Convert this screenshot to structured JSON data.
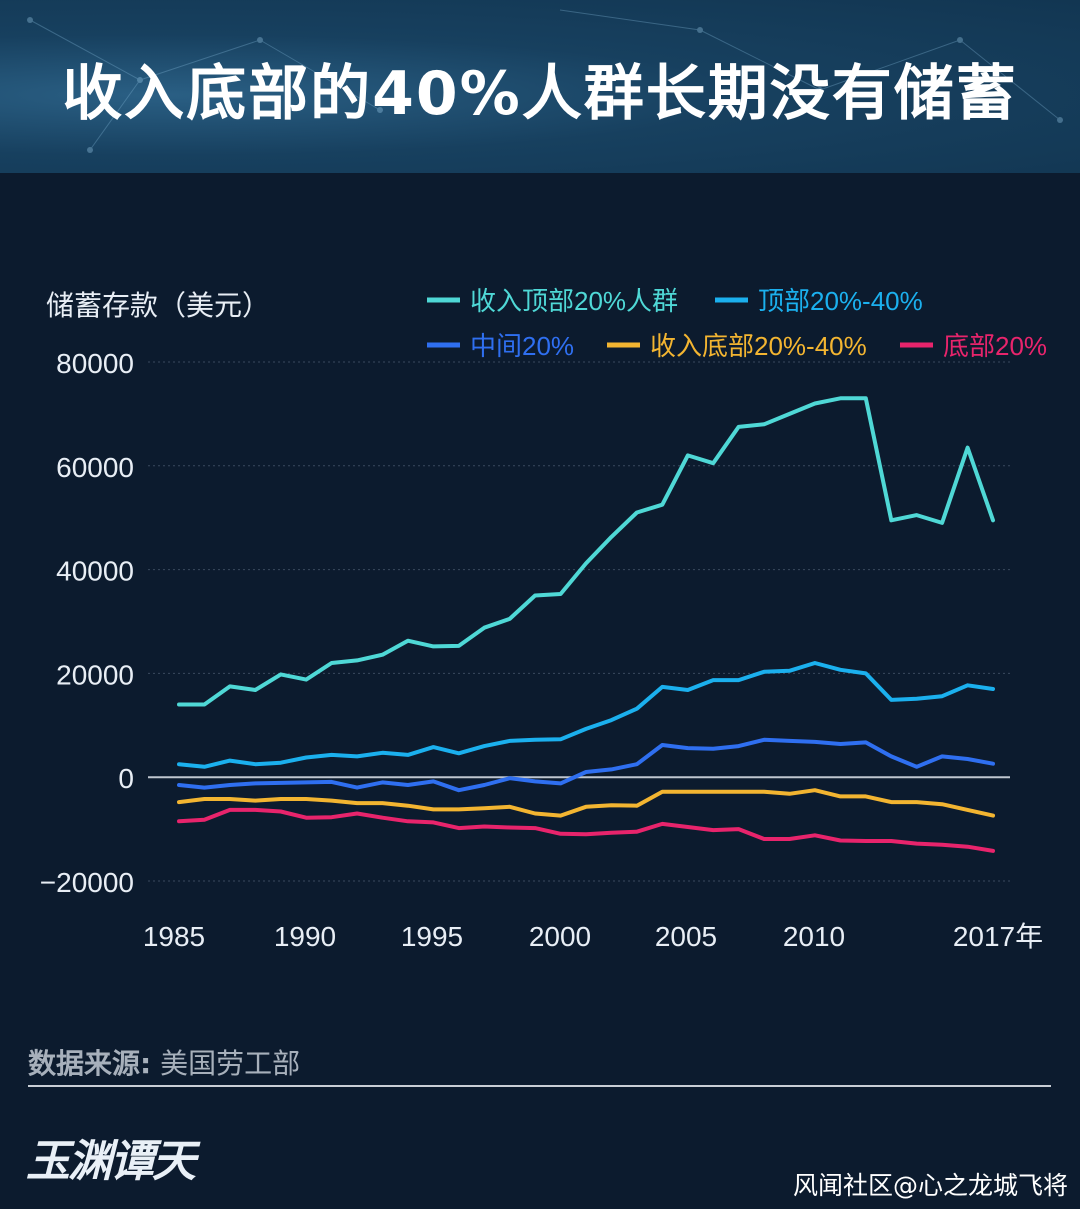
{
  "header": {
    "title": "收入底部的40%人群长期没有储蓄"
  },
  "footer": {
    "source_label": "数据来源:",
    "source_value": "美国劳工部",
    "brand": "玉渊谭天",
    "credit": "风闻社区@心之龙城飞将"
  },
  "colors": {
    "background": "#0c1b2e",
    "axis_zero": "#bfc6cf",
    "grid": "#3a4a5e",
    "text": "#e8eef5"
  },
  "chart_data": {
    "type": "line",
    "title": "收入底部的40%人群长期没有储蓄",
    "ylabel": "储蓄存款（美元）",
    "xlabel": "",
    "ylim": [
      -20000,
      80000
    ],
    "xlim": [
      1985,
      2017
    ],
    "yticks": [
      80000,
      60000,
      40000,
      20000,
      0,
      -20000
    ],
    "ytick_labels": [
      "80000",
      "60000",
      "40000",
      "20000",
      "0",
      "−20000"
    ],
    "xticks": [
      1985,
      1990,
      1995,
      2000,
      2005,
      2010,
      2017
    ],
    "xtick_labels": [
      "1985",
      "1990",
      "1995",
      "2000",
      "2005",
      "2010",
      "2017年"
    ],
    "x": [
      1986,
      1987,
      1988,
      1989,
      1990,
      1991,
      1992,
      1993,
      1994,
      1995,
      1996,
      1997,
      1998,
      1999,
      2000,
      2001,
      2002,
      2003,
      2004,
      2005,
      2006,
      2007,
      2008,
      2009,
      2010,
      2011,
      2012,
      2013,
      2014,
      2015,
      2016,
      2017,
      2018
    ],
    "series": [
      {
        "name": "收入顶部20%人群",
        "color": "#4fd8d6",
        "values": [
          14000,
          14000,
          17500,
          16800,
          19800,
          18800,
          22000,
          22500,
          23600,
          26300,
          25200,
          25300,
          28800,
          30500,
          35000,
          35300,
          41200,
          46300,
          51000,
          52500,
          62000,
          60500,
          67500,
          68000,
          70000,
          72000,
          73000,
          73000,
          49500,
          50500,
          49000,
          63500,
          49500
        ]
      },
      {
        "name": "顶部20%-40%",
        "color": "#1bb0ee",
        "values": [
          2500,
          2000,
          3200,
          2500,
          2800,
          3800,
          4300,
          4000,
          4700,
          4300,
          5800,
          4600,
          6000,
          7000,
          7200,
          7300,
          9300,
          11000,
          13200,
          17400,
          16800,
          18700,
          18700,
          20300,
          20500,
          22000,
          20700,
          20000,
          14900,
          15100,
          15600,
          17700,
          17000
        ]
      },
      {
        "name": "中间20%",
        "color": "#2f6ff0",
        "values": [
          -1500,
          -2000,
          -1500,
          -1200,
          -1100,
          -1000,
          -900,
          -2000,
          -1000,
          -1500,
          -800,
          -2500,
          -1500,
          -200,
          -800,
          -1200,
          1000,
          1500,
          2500,
          6200,
          5600,
          5500,
          6000,
          7200,
          7000,
          6800,
          6400,
          6700,
          4000,
          2000,
          4000,
          3500,
          2600
        ]
      },
      {
        "name": "收入底部20%-40%",
        "color": "#f3b531",
        "values": [
          -4800,
          -4200,
          -4200,
          -4500,
          -4200,
          -4200,
          -4500,
          -5000,
          -5000,
          -5500,
          -6200,
          -6200,
          -6000,
          -5700,
          -7000,
          -7400,
          -5700,
          -5400,
          -5500,
          -2800,
          -2800,
          -2800,
          -2800,
          -2800,
          -3200,
          -2500,
          -3700,
          -3700,
          -4800,
          -4800,
          -5200,
          -6300,
          -7400
        ]
      },
      {
        "name": "底部20%",
        "color": "#e8246c",
        "values": [
          -8500,
          -8200,
          -6300,
          -6300,
          -6600,
          -7800,
          -7700,
          -7000,
          -7800,
          -8500,
          -8700,
          -9800,
          -9500,
          -9700,
          -9800,
          -10900,
          -11000,
          -10700,
          -10500,
          -9000,
          -9600,
          -10200,
          -10000,
          -11900,
          -11900,
          -11200,
          -12200,
          -12300,
          -12300,
          -12800,
          -13000,
          -13400,
          -14200
        ]
      }
    ],
    "legend_position": "top-right"
  }
}
